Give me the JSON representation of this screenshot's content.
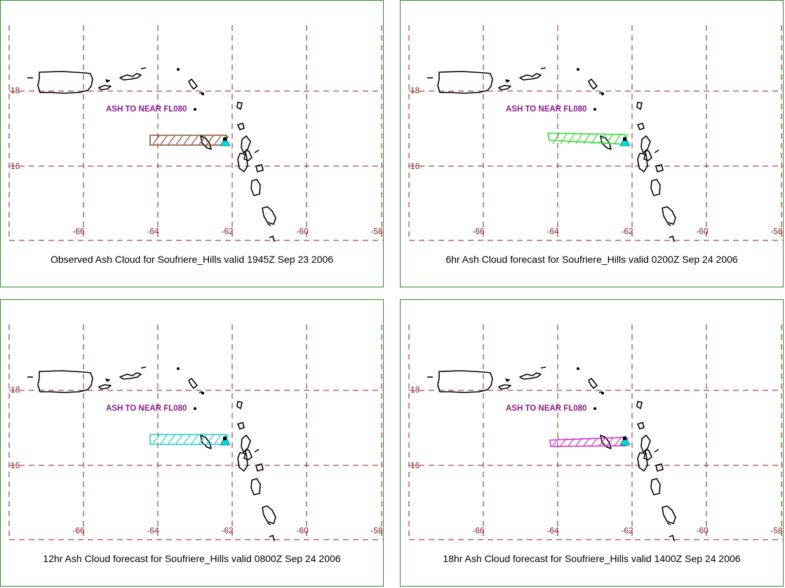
{
  "map": {
    "lat_labels": [
      "18",
      "16"
    ],
    "lon_labels": [
      "-66",
      "-64",
      "-62",
      "-60",
      "-58"
    ],
    "annotation": "ASH TO NEAR FL080",
    "volcano_marker_color": "#00d8d8",
    "grid_color": "#8b1a1a"
  },
  "panels": [
    {
      "caption": "Observed Ash Cloud for Soufriere_Hills valid 1945Z Sep 23 2006",
      "cloud_color": "#8b4a2b"
    },
    {
      "caption": "6hr Ash Cloud forecast for Soufriere_Hills valid 0200Z Sep 24 2006",
      "cloud_color": "#33dd33"
    },
    {
      "caption": "12hr Ash Cloud forecast for Soufriere_Hills valid 0800Z Sep 24 2006",
      "cloud_color": "#22cccc"
    },
    {
      "caption": "18hr Ash Cloud forecast for Soufriere_Hills valid 1400Z Sep 24 2006",
      "cloud_color": "#cc33cc"
    }
  ]
}
